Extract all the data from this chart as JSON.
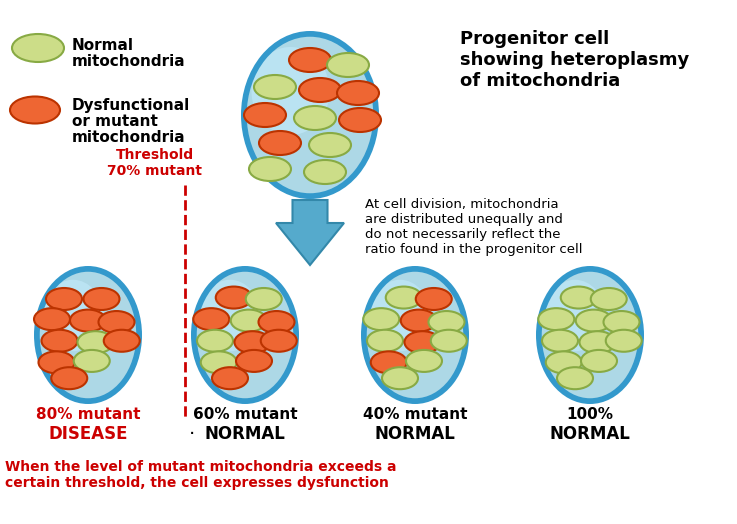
{
  "bg_color": "#FFFFFF",
  "cell_fill": "#ADD8E6",
  "cell_edge": "#3399CC",
  "cell_grad_inner": "#C8EEFF",
  "normal_color": "#CCDD88",
  "normal_edge": "#88AA44",
  "mutant_color": "#EE6633",
  "mutant_edge": "#BB3300",
  "arrow_color": "#55AACC",
  "arrow_edge": "#3388AA",
  "thresh_color": "#CC0000",
  "title": "Progenitor cell\nshowing heteroplasmy\nof mitochondria",
  "div_text": "At cell division, mitochondria\nare distributed unequally and\ndo not necessarily reflect the\nratio found in the progenitor cell",
  "leg_normal": "Normal\nmitochondria",
  "leg_mutant": "Dysfunctional\nor mutant\nmitochondria",
  "thresh_label": "Threshold\n70% mutant",
  "bottom_note": "When the level of mutant mitochondria exceeds a\ncertain threshold, the cell expresses dysfunction",
  "cell_labels": [
    {
      "pct": "80% mutant",
      "status": "DISEASE",
      "red": true
    },
    {
      "pct": "60% mutant",
      "status": "NORMAL",
      "red": false
    },
    {
      "pct": "40% mutant",
      "status": "NORMAL",
      "red": false
    },
    {
      "pct": "100%",
      "status": "NORMAL",
      "red": false
    }
  ],
  "prog_mitos": [
    [
      0,
      -55,
      "m"
    ],
    [
      38,
      -50,
      "n"
    ],
    [
      -35,
      -28,
      "n"
    ],
    [
      10,
      -25,
      "m"
    ],
    [
      48,
      -22,
      "m"
    ],
    [
      -45,
      0,
      "m"
    ],
    [
      5,
      3,
      "n"
    ],
    [
      50,
      5,
      "m"
    ],
    [
      -30,
      28,
      "m"
    ],
    [
      20,
      30,
      "n"
    ],
    [
      -40,
      54,
      "n"
    ],
    [
      15,
      57,
      "n"
    ]
  ],
  "c0_mitos": [
    [
      -32,
      -50,
      "m"
    ],
    [
      18,
      -50,
      "m"
    ],
    [
      -48,
      -22,
      "m"
    ],
    [
      0,
      -20,
      "m"
    ],
    [
      38,
      -18,
      "m"
    ],
    [
      -38,
      8,
      "m"
    ],
    [
      10,
      10,
      "n"
    ],
    [
      45,
      8,
      "m"
    ],
    [
      -42,
      38,
      "m"
    ],
    [
      5,
      36,
      "n"
    ],
    [
      -25,
      60,
      "m"
    ]
  ],
  "c1_mitos": [
    [
      -15,
      -52,
      "m"
    ],
    [
      25,
      -50,
      "n"
    ],
    [
      -45,
      -22,
      "m"
    ],
    [
      5,
      -20,
      "n"
    ],
    [
      42,
      -18,
      "m"
    ],
    [
      -40,
      8,
      "n"
    ],
    [
      10,
      10,
      "m"
    ],
    [
      45,
      8,
      "m"
    ],
    [
      -35,
      38,
      "n"
    ],
    [
      12,
      36,
      "m"
    ],
    [
      -20,
      60,
      "m"
    ]
  ],
  "c2_mitos": [
    [
      -15,
      -52,
      "n"
    ],
    [
      25,
      -50,
      "m"
    ],
    [
      -45,
      -22,
      "n"
    ],
    [
      5,
      -20,
      "m"
    ],
    [
      42,
      -18,
      "n"
    ],
    [
      -40,
      8,
      "n"
    ],
    [
      10,
      10,
      "m"
    ],
    [
      45,
      8,
      "n"
    ],
    [
      -35,
      38,
      "m"
    ],
    [
      12,
      36,
      "n"
    ],
    [
      -20,
      60,
      "n"
    ]
  ],
  "c3_mitos": [
    [
      -15,
      -52,
      "n"
    ],
    [
      25,
      -50,
      "n"
    ],
    [
      -45,
      -22,
      "n"
    ],
    [
      5,
      -20,
      "n"
    ],
    [
      42,
      -18,
      "n"
    ],
    [
      -40,
      8,
      "n"
    ],
    [
      10,
      10,
      "n"
    ],
    [
      45,
      8,
      "n"
    ],
    [
      -35,
      38,
      "n"
    ],
    [
      12,
      36,
      "n"
    ],
    [
      -20,
      60,
      "n"
    ]
  ]
}
